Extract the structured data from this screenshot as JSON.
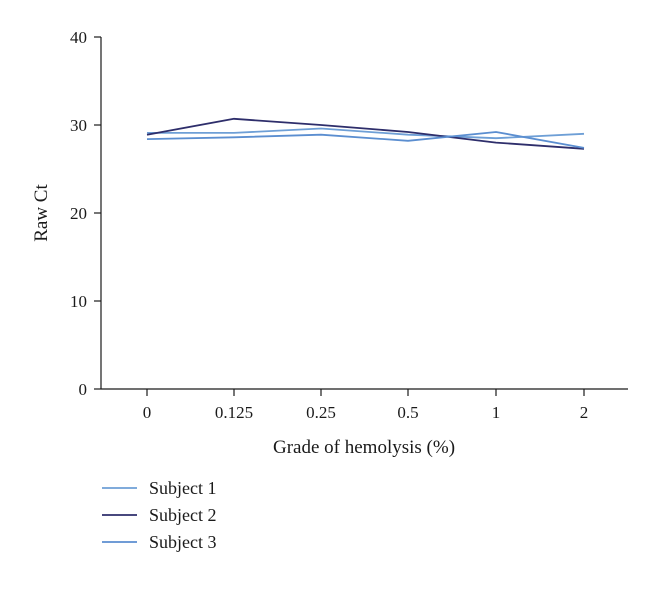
{
  "chart_data": {
    "type": "line",
    "xlabel": "Grade of hemolysis (%)",
    "ylabel": "Raw Ct",
    "categories": [
      "0",
      "0.125",
      "0.25",
      "0.5",
      "1",
      "2"
    ],
    "ylim": [
      0,
      40
    ],
    "yticks": [
      0,
      10,
      20,
      30,
      40
    ],
    "grid": false,
    "legend_position": "bottom-left",
    "series": [
      {
        "name": "Subject 1",
        "color": "#6e9fd6",
        "values": [
          29.1,
          29.1,
          29.6,
          28.9,
          28.5,
          29.0
        ]
      },
      {
        "name": "Subject 2",
        "color": "#2e2e6b",
        "values": [
          28.9,
          30.7,
          30.0,
          29.2,
          28.0,
          27.3
        ]
      },
      {
        "name": "Subject 3",
        "color": "#5b8ed0",
        "values": [
          28.4,
          28.6,
          28.9,
          28.2,
          29.2,
          27.4
        ]
      }
    ]
  }
}
